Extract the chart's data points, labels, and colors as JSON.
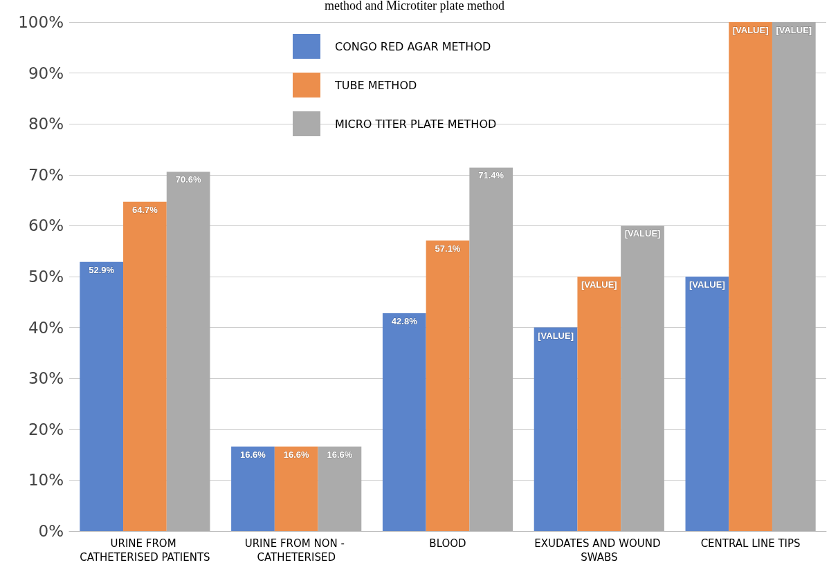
{
  "chart_data": {
    "type": "bar",
    "title": "method and Microtiter plate method",
    "categories": [
      "URINE FROM CATHETERISED PATIENTS",
      "URINE FROM NON - CATHETERISED",
      "BLOOD",
      "EXUDATES AND WOUND SWABS",
      "CENTRAL LINE TIPS"
    ],
    "series": [
      {
        "name": "CONGO RED AGAR METHOD",
        "color": "#5b84cb",
        "values": [
          52.9,
          16.6,
          42.8,
          40,
          50
        ],
        "value_labels": [
          "52.9%",
          "16.6%",
          "42.8%",
          "[VALUE]",
          "[VALUE]"
        ]
      },
      {
        "name": "TUBE METHOD",
        "color": "#ec8e4c",
        "values": [
          64.7,
          16.6,
          57.1,
          50,
          100
        ],
        "value_labels": [
          "64.7%",
          "16.6%",
          "57.1%",
          "[VALUE]",
          "[VALUE]"
        ]
      },
      {
        "name": "MICRO TITER PLATE METHOD",
        "color": "#ababab",
        "values": [
          70.6,
          16.6,
          71.4,
          60,
          100
        ],
        "value_labels": [
          "70.6%",
          "16.6%",
          "71.4%",
          "[VALUE]",
          "[VALUE]"
        ]
      }
    ],
    "ylim": [
      0,
      100
    ],
    "yticks": [
      {
        "value": 0,
        "label": "0%"
      },
      {
        "value": 10,
        "label": "10%"
      },
      {
        "value": 20,
        "label": "20%"
      },
      {
        "value": 30,
        "label": "30%"
      },
      {
        "value": 40,
        "label": "40%"
      },
      {
        "value": 50,
        "label": "50%"
      },
      {
        "value": 60,
        "label": "60%"
      },
      {
        "value": 70,
        "label": "70%"
      },
      {
        "value": 80,
        "label": "80%"
      },
      {
        "value": 90,
        "label": "90%"
      },
      {
        "value": 100,
        "label": "100%"
      }
    ],
    "grid": "y",
    "legend": "top"
  }
}
